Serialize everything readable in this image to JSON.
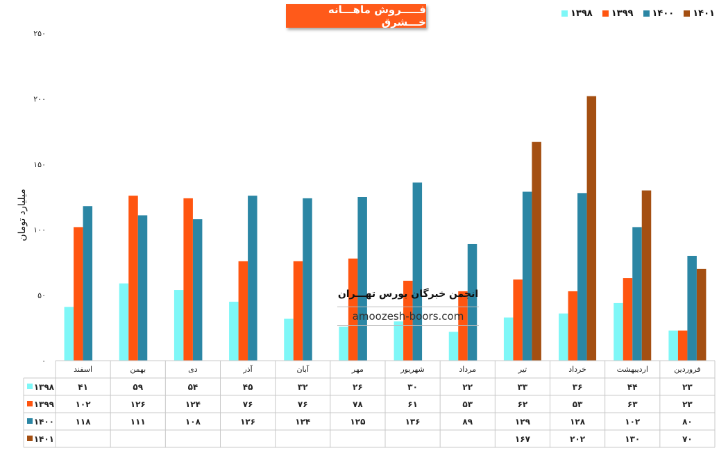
{
  "chart_data": {
    "type": "bar",
    "title": "فـــــروش ماهـــانه خـــشرق",
    "ylabel": "میلیارد تومان",
    "xlabel": "",
    "ylim": [
      0,
      250
    ],
    "yticks": [
      "۰",
      "۵۰",
      "۱۰۰",
      "۱۵۰",
      "۲۰۰",
      "۲۵۰"
    ],
    "categories": [
      "فروردین",
      "اردیبهشت",
      "خرداد",
      "تیر",
      "مرداد",
      "شهریور",
      "مهر",
      "آبان",
      "آذر",
      "دی",
      "بهمن",
      "اسفند"
    ],
    "series": [
      {
        "name": "۱۳۹۸",
        "color": "#7ef7f7",
        "values": [
          23,
          44,
          36,
          33,
          22,
          30,
          26,
          32,
          45,
          54,
          59,
          41
        ],
        "labels": [
          "۲۳",
          "۴۴",
          "۳۶",
          "۳۳",
          "۲۲",
          "۳۰",
          "۲۶",
          "۳۲",
          "۴۵",
          "۵۴",
          "۵۹",
          "۴۱"
        ]
      },
      {
        "name": "۱۳۹۹",
        "color": "#ff5510",
        "values": [
          23,
          63,
          53,
          62,
          53,
          61,
          78,
          76,
          76,
          124,
          126,
          102
        ],
        "labels": [
          "۲۳",
          "۶۳",
          "۵۳",
          "۶۲",
          "۵۳",
          "۶۱",
          "۷۸",
          "۷۶",
          "۷۶",
          "۱۲۴",
          "۱۲۶",
          "۱۰۲"
        ]
      },
      {
        "name": "۱۴۰۰",
        "color": "#2b86a4",
        "values": [
          80,
          102,
          128,
          129,
          89,
          136,
          125,
          124,
          126,
          108,
          111,
          118
        ],
        "labels": [
          "۸۰",
          "۱۰۲",
          "۱۲۸",
          "۱۲۹",
          "۸۹",
          "۱۳۶",
          "۱۲۵",
          "۱۲۴",
          "۱۲۶",
          "۱۰۸",
          "۱۱۱",
          "۱۱۸"
        ]
      },
      {
        "name": "۱۴۰۱",
        "color": "#a44f12",
        "values": [
          70,
          130,
          202,
          167,
          null,
          null,
          null,
          null,
          null,
          null,
          null,
          null
        ],
        "labels": [
          "۷۰",
          "۱۳۰",
          "۲۰۲",
          "۱۶۷",
          "",
          "",
          "",
          "",
          "",
          "",
          "",
          ""
        ]
      }
    ],
    "legend_placement": "top-right",
    "grid": false,
    "data_table": true
  },
  "watermark": {
    "fa": "انجمن خبرگان بورس تهـــران",
    "en": "amoozesh-boors.com"
  }
}
